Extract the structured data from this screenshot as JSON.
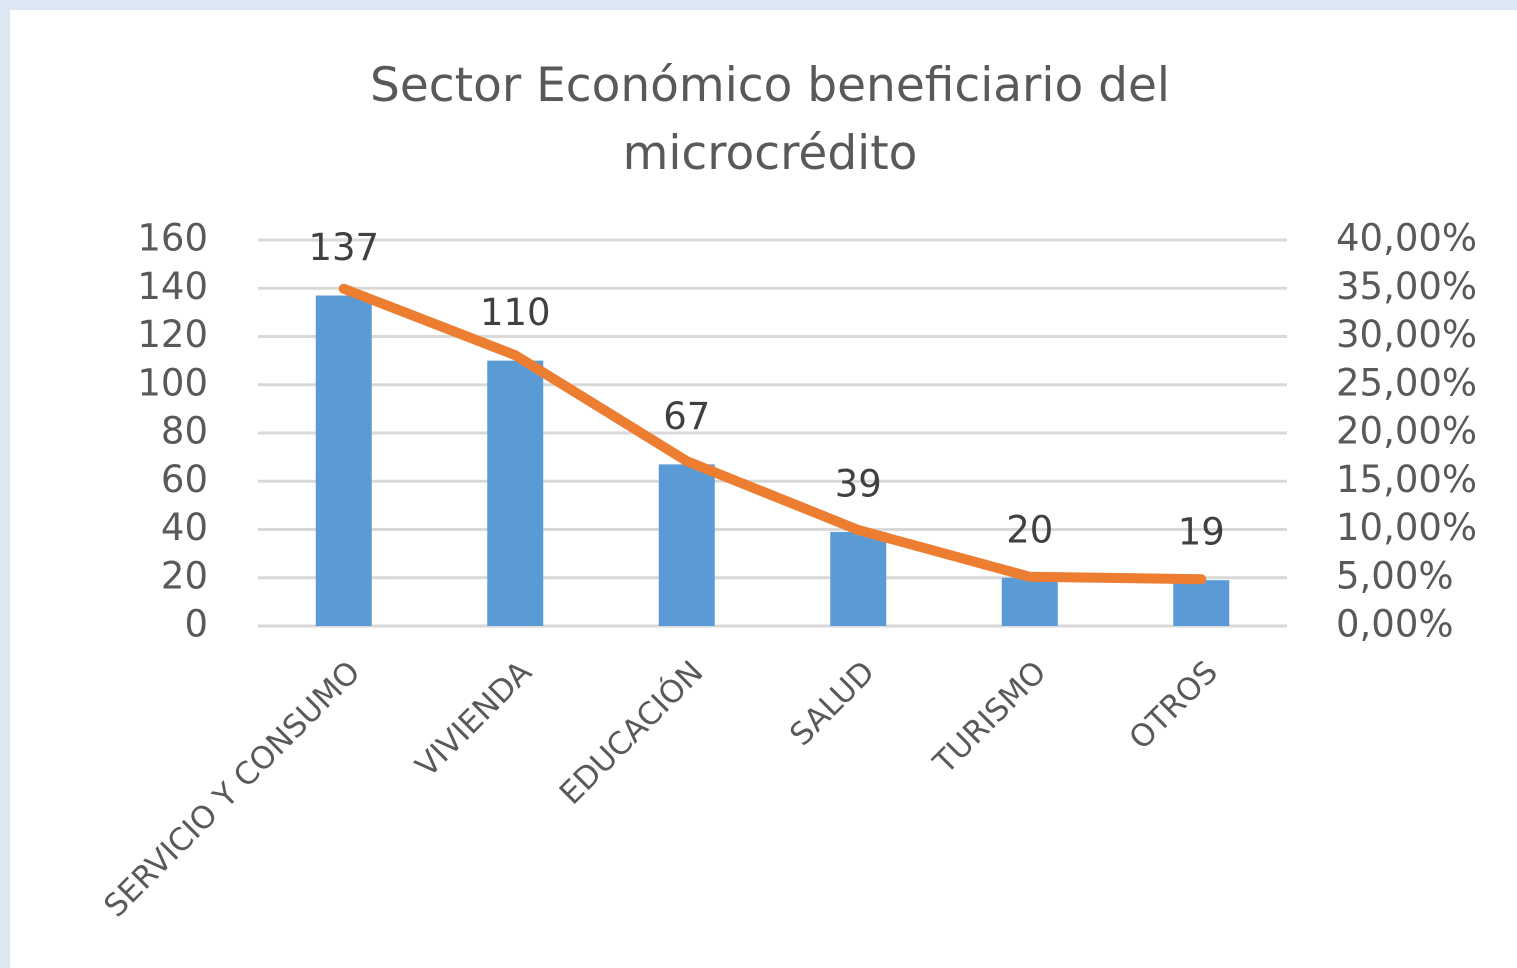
{
  "chart_data": {
    "type": "bar_line",
    "title": "Sector Económico beneficiario del microcrédito",
    "categories": [
      "SERVICIO Y CONSUMO",
      "VIVIENDA",
      "EDUCACIÓN",
      "SALUD",
      "TURISMO",
      "OTROS"
    ],
    "series": [
      {
        "type": "bar",
        "color": "#5b9bd5",
        "values": [
          137,
          110,
          67,
          39,
          20,
          19
        ]
      },
      {
        "type": "line",
        "color": "#ed7d31",
        "axis": "y2",
        "values": [
          34.95,
          28.06,
          17.09,
          9.95,
          5.1,
          4.85
        ]
      }
    ],
    "ylim": [
      0,
      160
    ],
    "yticks": [
      0,
      20,
      40,
      60,
      80,
      100,
      120,
      140,
      160
    ],
    "y2lim": [
      0,
      40
    ],
    "y2ticks": [
      {
        "value": 0,
        "label": "0,00%"
      },
      {
        "value": 5,
        "label": "5,00%"
      },
      {
        "value": 10,
        "label": "10,00%"
      },
      {
        "value": 15,
        "label": "15,00%"
      },
      {
        "value": 20,
        "label": "20,00%"
      },
      {
        "value": 25,
        "label": "25,00%"
      },
      {
        "value": 30,
        "label": "30,00%"
      },
      {
        "value": 35,
        "label": "35,00%"
      },
      {
        "value": 40,
        "label": "40,00%"
      }
    ],
    "grid": true
  }
}
